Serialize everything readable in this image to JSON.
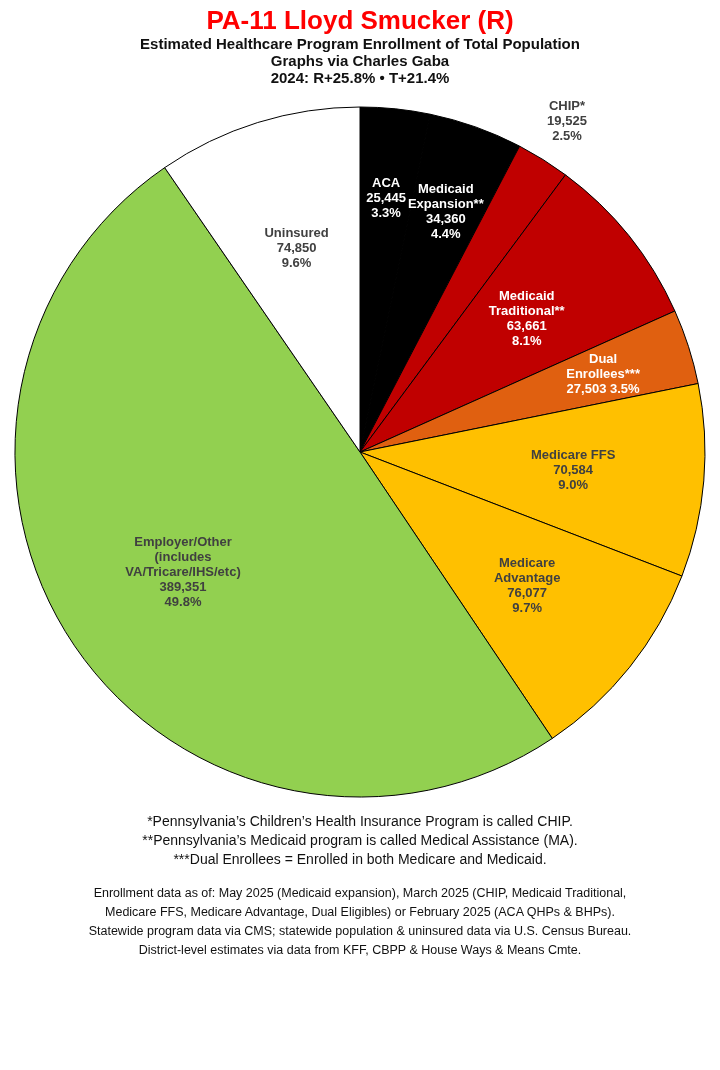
{
  "chart_data": {
    "type": "pie",
    "title": "PA-11 Lloyd Smucker (R)",
    "subtitle": [
      "Estimated Healthcare Program Enrollment of Total Population",
      "Graphs via Charles Gaba",
      "2024: R+25.8% • T+21.4%"
    ],
    "categories": [
      "ACA",
      "Medicaid Expansion**",
      "CHIP*",
      "Medicaid Traditional**",
      "Dual Enrollees***",
      "Medicare FFS",
      "Medicare Advantage",
      "Employer/Other (includes VA/Tricare/IHS/etc)",
      "Uninsured"
    ],
    "values": [
      25445,
      34360,
      19525,
      63661,
      27503,
      70584,
      76077,
      389351,
      74850
    ],
    "value_labels": [
      "25,445\n3.3%",
      "34,360\n4.4%",
      "19,525\n2.5%",
      "63,661\n8.1%",
      "27,503 3.5%",
      "70,584\n9.0%",
      "76,077\n9.7%",
      "389,351\n49.8%",
      "74,850\n9.6%"
    ],
    "colors": [
      "#000000",
      "#000000",
      "#c00000",
      "#c00000",
      "#e06010",
      "#ffc000",
      "#ffc000",
      "#92d050",
      "#ffffff"
    ],
    "annotations": [
      "*Pennsylvania’s Children’s Health Insurance Program is called CHIP.",
      "**Pennsylvania’s Medicaid program is called Medical Assistance (MA).",
      "***Dual Enrollees = Enrolled in both Medicare and Medicaid.",
      "Enrollment data as of: May 2025 (Medicaid expansion), March 2025 (CHIP, Medicaid Traditional,",
      "Medicare FFS, Medicare Advantage, Dual Eligibles) or February 2025 (ACA QHPs & BHPs).",
      "Statewide program data via CMS; statewide population & uninsured data via U.S. Census Bureau.",
      "District-level estimates via data from KFF, CBPP & House Ways & Means Cmte."
    ]
  }
}
